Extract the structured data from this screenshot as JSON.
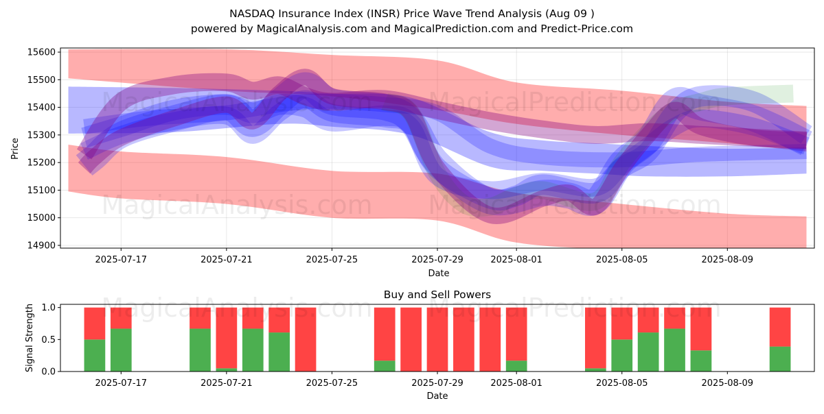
{
  "title_line1": "NASDAQ Insurance Index (INSR) Price Wave Trend Analysis (Aug 09 )",
  "title_line2": "powered by MagicalAnalysis.com and MagicalPrediction.com and Predict-Price.com",
  "watermarks": [
    "MagicalAnalysis.com",
    "MagicalPrediction.com"
  ],
  "colors": {
    "red": "#ff0000",
    "blue": "#0000ff",
    "purple": "#800080",
    "green": "#008000",
    "buy": "#4caf50",
    "sell": "#ff4444"
  },
  "chart_data": [
    {
      "type": "area",
      "title": "",
      "xlabel": "Date",
      "ylabel": "Price",
      "ylim": [
        14890,
        15615
      ],
      "yticks": [
        14900,
        15000,
        15100,
        15200,
        15300,
        15400,
        15500,
        15600
      ],
      "ytick_labels": [
        "14900",
        "15000",
        "15100",
        "15200",
        "15300",
        "15400",
        "15500",
        "15600"
      ],
      "xticks": [
        2,
        6,
        10,
        14,
        17,
        21,
        25
      ],
      "xtick_labels": [
        "2025-07-17",
        "2025-07-21",
        "2025-07-25",
        "2025-07-29",
        "2025-08-01",
        "2025-08-05",
        "2025-08-09"
      ],
      "xlim": [
        -0.3,
        28.3
      ],
      "grid": true,
      "bands": [
        {
          "name": "upper-red-band",
          "color": "red",
          "x": [
            0,
            6,
            10,
            14,
            17,
            21,
            25,
            28
          ],
          "upper": [
            15610,
            15610,
            15590,
            15570,
            15490,
            15460,
            15420,
            15405
          ],
          "lower": [
            15505,
            15460,
            15440,
            15390,
            15340,
            15300,
            15270,
            15240
          ]
        },
        {
          "name": "lower-red-band",
          "color": "red",
          "x": [
            0,
            2,
            6,
            10,
            14,
            17,
            21,
            25,
            28
          ],
          "upper": [
            15265,
            15240,
            15220,
            15170,
            15160,
            15090,
            15050,
            15015,
            15005
          ],
          "lower": [
            15095,
            15070,
            15050,
            15000,
            14990,
            14910,
            14885,
            14880,
            14875
          ]
        },
        {
          "name": "blue-envelope",
          "color": "blue",
          "x": [
            0,
            4,
            8,
            10,
            13,
            16,
            18,
            20,
            22,
            25,
            28
          ],
          "upper": [
            15475,
            15470,
            15460,
            15450,
            15435,
            15310,
            15280,
            15270,
            15260,
            15250,
            15255
          ],
          "lower": [
            15305,
            15310,
            15340,
            15330,
            15300,
            15185,
            15170,
            15160,
            15150,
            15150,
            15160
          ]
        }
      ],
      "series": [
        {
          "name": "blue-wave-1",
          "color": "blue",
          "x": [
            0.6,
            1,
            2,
            4,
            6,
            7,
            8,
            9,
            10,
            12,
            13,
            14,
            16,
            18,
            19,
            20,
            21,
            22,
            23,
            24,
            26,
            28
          ],
          "values": [
            15190,
            15220,
            15300,
            15360,
            15400,
            15340,
            15420,
            15480,
            15420,
            15400,
            15350,
            15200,
            15060,
            15090,
            15080,
            15060,
            15200,
            15280,
            15420,
            15400,
            15360,
            15270
          ],
          "width": 38
        },
        {
          "name": "blue-wave-2",
          "color": "blue",
          "x": [
            0.6,
            2,
            4,
            6,
            7,
            8,
            9,
            10,
            12,
            13,
            14,
            16,
            17,
            18,
            20,
            21,
            22,
            23,
            24,
            26,
            28
          ],
          "values": [
            15290,
            15330,
            15390,
            15410,
            15380,
            15410,
            15400,
            15350,
            15370,
            15340,
            15180,
            15070,
            15080,
            15120,
            15090,
            15180,
            15240,
            15380,
            15440,
            15420,
            15300
          ],
          "width": 30
        },
        {
          "name": "blue-wave-3",
          "color": "blue",
          "x": [
            0.6,
            2,
            4,
            6,
            7,
            8,
            9,
            10,
            12,
            13,
            14,
            16,
            18,
            20,
            21,
            22,
            23,
            24,
            26,
            28
          ],
          "values": [
            15240,
            15300,
            15350,
            15370,
            15300,
            15380,
            15430,
            15380,
            15360,
            15330,
            15150,
            15100,
            15130,
            15110,
            15190,
            15260,
            15330,
            15360,
            15330,
            15260
          ],
          "width": 26
        },
        {
          "name": "blue-flat-1",
          "color": "blue",
          "x": [
            0.6,
            3,
            6,
            9,
            12,
            14,
            16,
            18,
            21,
            24,
            28
          ],
          "values": [
            15330,
            15360,
            15380,
            15420,
            15410,
            15380,
            15260,
            15220,
            15210,
            15230,
            15240
          ],
          "width": 22
        },
        {
          "name": "green-wave",
          "color": "green",
          "x": [
            12,
            13,
            14,
            15,
            16,
            17,
            18,
            20,
            21,
            22,
            23,
            24,
            25,
            27.5
          ],
          "values": [
            15420,
            15380,
            15160,
            15050,
            15040,
            15080,
            15100,
            15060,
            15200,
            15310,
            15390,
            15420,
            15440,
            15450
          ],
          "width": 26
        },
        {
          "name": "purple-line",
          "color": "purple",
          "x": [
            0.6,
            2,
            4,
            6,
            7,
            8,
            9,
            10,
            12,
            14,
            16,
            18,
            20,
            22,
            24,
            26,
            28
          ],
          "values": [
            15230,
            15420,
            15480,
            15490,
            15460,
            15480,
            15440,
            15420,
            15430,
            15390,
            15350,
            15320,
            15300,
            15310,
            15300,
            15290,
            15280
          ],
          "width": 26
        },
        {
          "name": "purple-wave",
          "color": "purple",
          "x": [
            0.6,
            1,
            2,
            4,
            6,
            7,
            8,
            9,
            10,
            12,
            13,
            14,
            16,
            18,
            19,
            20,
            21,
            22,
            23,
            24,
            26,
            28
          ],
          "values": [
            15180,
            15220,
            15290,
            15360,
            15410,
            15350,
            15450,
            15510,
            15440,
            15420,
            15380,
            15180,
            15010,
            15070,
            15090,
            15040,
            15180,
            15300,
            15390,
            15330,
            15290,
            15280
          ],
          "width": 24
        }
      ]
    },
    {
      "type": "bar",
      "title": "Buy and Sell Powers",
      "xlabel": "Date",
      "ylabel": "Signal Strength",
      "ylim": [
        0,
        1.05
      ],
      "yticks": [
        0.0,
        0.5,
        1.0
      ],
      "ytick_labels": [
        "0.0",
        "0.5",
        "1.0"
      ],
      "xticks": [
        2,
        6,
        10,
        14,
        17,
        21,
        25
      ],
      "xtick_labels": [
        "2025-07-17",
        "2025-07-21",
        "2025-07-25",
        "2025-07-29",
        "2025-08-01",
        "2025-08-05",
        "2025-08-09"
      ],
      "xlim": [
        -0.3,
        28.3
      ],
      "grid": false,
      "x": [
        1,
        2,
        5,
        6,
        7,
        8,
        9,
        12,
        13,
        14,
        15,
        16,
        17,
        20,
        21,
        22,
        23,
        24,
        27
      ],
      "series": [
        {
          "name": "buy",
          "color": "buy",
          "values": [
            0.5,
            0.67,
            0.67,
            0.05,
            0.67,
            0.61,
            0.0,
            0.17,
            0.0,
            0.0,
            0.0,
            0.0,
            0.17,
            0.05,
            0.5,
            0.61,
            0.67,
            0.33,
            0.39
          ]
        },
        {
          "name": "sell",
          "color": "sell",
          "values": [
            0.5,
            0.33,
            0.33,
            0.95,
            0.33,
            0.39,
            1.0,
            0.83,
            1.0,
            1.0,
            1.0,
            1.0,
            0.83,
            0.95,
            0.5,
            0.39,
            0.33,
            0.67,
            0.61
          ]
        }
      ]
    }
  ]
}
